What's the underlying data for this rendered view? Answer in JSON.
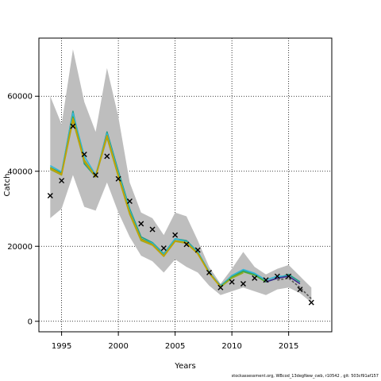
{
  "chart_data": {
    "type": "line",
    "xlabel": "Years",
    "ylabel": "Catch",
    "xlim": [
      1993.0,
      2018.8
    ],
    "ylim": [
      -2800,
      75500
    ],
    "xticks": [
      1995,
      2000,
      2005,
      2010,
      2015
    ],
    "yticks": [
      0,
      20000,
      40000,
      60000
    ],
    "grid": "dotted",
    "band": {
      "x": [
        1994,
        1995,
        1996,
        1997,
        1998,
        1999,
        2000,
        2001,
        2002,
        2003,
        2004,
        2005,
        2006,
        2007,
        2008,
        2009,
        2010,
        2011,
        2012,
        2013,
        2014,
        2015,
        2016,
        2017
      ],
      "upper": [
        60000,
        52500,
        72500,
        58500,
        50500,
        67500,
        54500,
        37000,
        29000,
        27500,
        23000,
        29000,
        28000,
        21500,
        14500,
        10000,
        14000,
        18500,
        14500,
        12500,
        14000,
        15000,
        12000,
        9000
      ],
      "lower": [
        27500,
        30000,
        39000,
        30500,
        29500,
        37000,
        29000,
        22500,
        17500,
        16000,
        13000,
        16500,
        14500,
        13000,
        9500,
        7000,
        8000,
        9000,
        8000,
        7000,
        8500,
        9000,
        7500,
        5000
      ]
    },
    "series": [
      {
        "color": "#1f9e89",
        "x": [
          1994,
          1995,
          1996,
          1997,
          1998,
          1999,
          2000,
          2001,
          2002,
          2003,
          2004,
          2005,
          2006,
          2007,
          2008,
          2009,
          2010,
          2011,
          2012,
          2013,
          2014,
          2015,
          2016
        ],
        "values": [
          41000,
          39500,
          56000,
          42000,
          38500,
          50500,
          40000,
          30000,
          22500,
          21000,
          18000,
          22000,
          21500,
          18500,
          13000,
          9500,
          12000,
          13500,
          12500,
          10500,
          11500,
          12500,
          10500
        ]
      },
      {
        "color": "#33b6d6",
        "x": [
          1994,
          1995,
          1996,
          1997,
          1998,
          1999,
          2000,
          2001,
          2002,
          2003,
          2004,
          2005,
          2006,
          2007,
          2008,
          2009,
          2010,
          2011,
          2012,
          2013,
          2014,
          2015
        ],
        "values": [
          41500,
          39800,
          55500,
          44000,
          39000,
          50000,
          39500,
          29500,
          22000,
          20800,
          17800,
          22000,
          21200,
          18500,
          13200,
          9300,
          12200,
          13800,
          12800,
          11000,
          12000,
          12000
        ]
      },
      {
        "color": "#55aa33",
        "x": [
          1994,
          1995,
          1996,
          1997,
          1998,
          1999,
          2000,
          2001,
          2002,
          2003,
          2004,
          2005,
          2006,
          2007,
          2008,
          2009,
          2010,
          2011,
          2012,
          2013
        ],
        "values": [
          41000,
          39300,
          54500,
          43000,
          38700,
          49500,
          39000,
          29000,
          22000,
          20500,
          17500,
          21500,
          21000,
          18200,
          13000,
          9200,
          11800,
          13200,
          12300,
          10500
        ]
      },
      {
        "color": "#9aaa22",
        "x": [
          1994,
          1995,
          1996,
          1997,
          1998,
          1999,
          2000,
          2001,
          2002,
          2003,
          2004,
          2005,
          2006,
          2007,
          2008,
          2009,
          2010,
          2011
        ],
        "values": [
          40500,
          39000,
          53500,
          42500,
          38500,
          49000,
          38500,
          28500,
          21500,
          20300,
          17300,
          21300,
          20800,
          18000,
          12800,
          9100,
          11500,
          12900
        ]
      },
      {
        "color": "#c8a000",
        "x": [
          1994,
          1995,
          1996,
          1997,
          1998,
          1999,
          2000,
          2001,
          2002,
          2003,
          2004,
          2005,
          2006,
          2007,
          2008,
          2009
        ],
        "values": [
          40800,
          39200,
          54000,
          42800,
          38600,
          49500,
          38800,
          28800,
          21800,
          20400,
          17400,
          21400,
          21000,
          18000,
          12900,
          9200
        ]
      },
      {
        "color": "#3b2a8c",
        "x": [
          2013,
          2014,
          2015,
          2016
        ],
        "values": [
          10500,
          11500,
          12000,
          10000
        ]
      },
      {
        "color": "#555555",
        "dashed": true,
        "x": [
          2014,
          2015,
          2016,
          2017
        ],
        "values": [
          11000,
          11500,
          9000,
          6000
        ]
      }
    ],
    "observed": {
      "x": [
        1994,
        1995,
        1996,
        1997,
        1998,
        1999,
        2000,
        2001,
        2002,
        2003,
        2004,
        2005,
        2006,
        2007,
        2008,
        2009,
        2010,
        2011,
        2012,
        2013,
        2014,
        2015,
        2016,
        2017
      ],
      "values": [
        33500,
        37500,
        52000,
        44500,
        39000,
        44000,
        38000,
        32000,
        26000,
        24500,
        19500,
        23000,
        20500,
        19000,
        13000,
        9000,
        10500,
        10000,
        11500,
        11000,
        12000,
        12000,
        8500,
        5000
      ]
    }
  },
  "footer": "stockassessment.org, WBcod_13degNew_cwb, r10542 , git: 503cf91af157"
}
